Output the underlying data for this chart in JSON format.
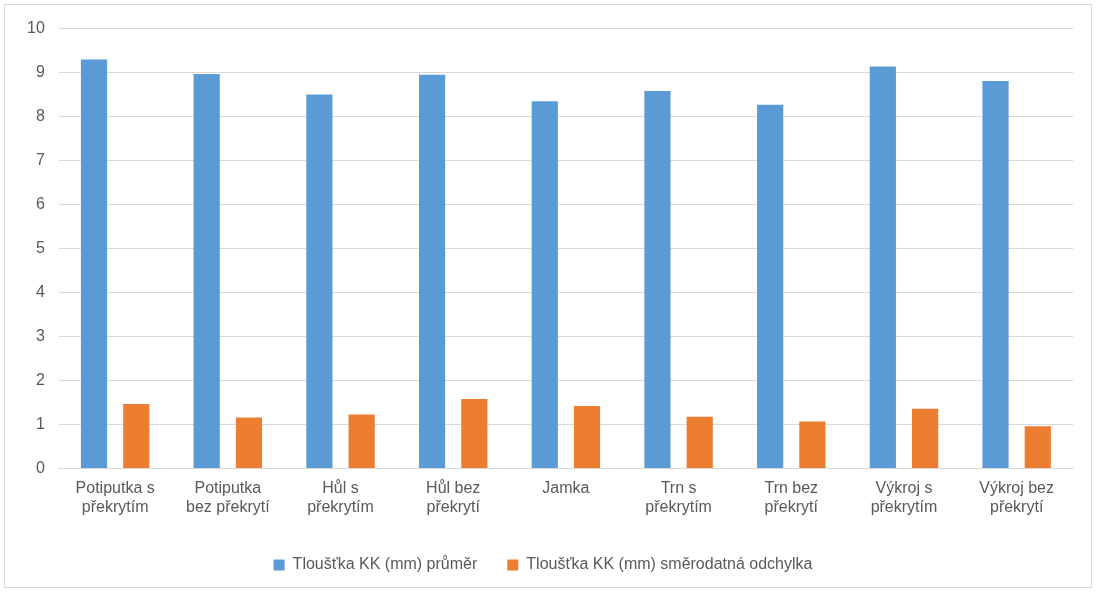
{
  "chart_data": {
    "type": "bar",
    "categories": [
      "Potiputka s překrytím",
      "Potiputka bez překrytí",
      "Hůl s překrytím",
      "Hůl bez překrytí",
      "Jamka",
      "Trn s překrytím",
      "Trn bez překrytí",
      "Výkroj s překrytím",
      "Výkroj bez překrytí"
    ],
    "series": [
      {
        "name": "Tloušťka KK (mm) průměr",
        "color": "#5b9bd5",
        "values": [
          9.3,
          8.97,
          8.5,
          8.95,
          8.35,
          8.58,
          8.27,
          9.14,
          8.81
        ]
      },
      {
        "name": "Tloušťka KK (mm) směrodatná odchylka",
        "color": "#ed7d31",
        "values": [
          1.47,
          1.16,
          1.23,
          1.58,
          1.42,
          1.18,
          1.07,
          1.36,
          0.96
        ]
      }
    ],
    "ylim": [
      0,
      10
    ],
    "yticks": [
      0,
      1,
      2,
      3,
      4,
      5,
      6,
      7,
      8,
      9,
      10
    ],
    "grid": "y",
    "legend": "bottom"
  }
}
